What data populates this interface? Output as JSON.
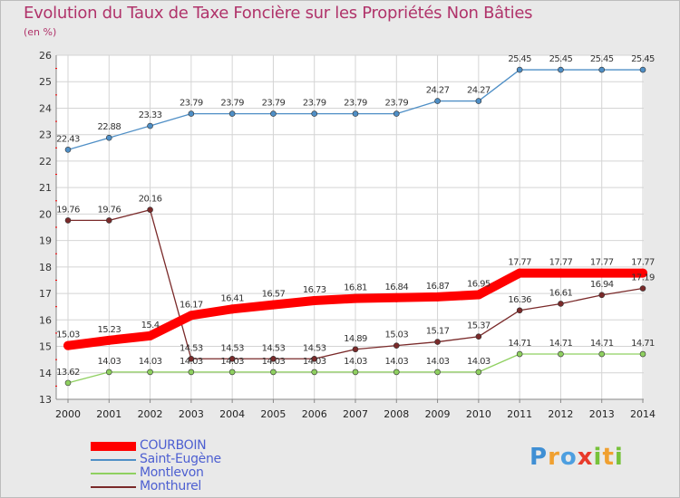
{
  "title": "Evolution du Taux de Taxe Foncière sur les Propriétés Non Bâties",
  "subtitle": "(en %)",
  "logo": {
    "letters": [
      "P",
      "r",
      "o",
      "x",
      "i",
      "t",
      "i"
    ],
    "colors": [
      "#3f8fd4",
      "#f0a030",
      "#4d9fe0",
      "#e83a2a",
      "#77c23a",
      "#f0a030",
      "#77c23a"
    ]
  },
  "chart_data": {
    "type": "line",
    "x": [
      2000,
      2001,
      2002,
      2003,
      2004,
      2005,
      2006,
      2007,
      2008,
      2009,
      2010,
      2011,
      2012,
      2013,
      2014
    ],
    "ylim": [
      13,
      26
    ],
    "yticks": [
      13,
      14,
      15,
      16,
      17,
      18,
      19,
      20,
      21,
      22,
      23,
      24,
      25,
      26
    ],
    "grid": true,
    "legend_position": "bottom-left",
    "series": [
      {
        "name": "COURBOIN",
        "color": "#ff0000",
        "values": [
          15.03,
          15.23,
          15.4,
          16.17,
          16.41,
          16.57,
          16.73,
          16.81,
          16.84,
          16.87,
          16.95,
          17.77,
          17.77,
          17.77,
          17.77
        ],
        "labels": [
          "15.03",
          "15.23",
          "15.4",
          "16.17",
          "16.41",
          "16.57",
          "16.73",
          "16.81",
          "16.84",
          "16.87",
          "16.95",
          "17.77",
          "17.77",
          "17.77",
          "17.77"
        ]
      },
      {
        "name": "Saint-Eugène",
        "color": "#4f8fc6",
        "values": [
          22.43,
          22.88,
          23.33,
          23.79,
          23.79,
          23.79,
          23.79,
          23.79,
          23.79,
          24.27,
          24.27,
          25.45,
          25.45,
          25.45,
          25.45
        ],
        "labels": [
          "22.43",
          "22.88",
          "23.33",
          "23.79",
          "23.79",
          "23.79",
          "23.79",
          "23.79",
          "23.79",
          "24.27",
          "24.27",
          "25.45",
          "25.45",
          "25.45",
          "25.45"
        ]
      },
      {
        "name": "Montlevon",
        "color": "#8fd060",
        "values": [
          13.62,
          14.03,
          14.03,
          14.03,
          14.03,
          14.03,
          14.03,
          14.03,
          14.03,
          14.03,
          14.03,
          14.71,
          14.71,
          14.71,
          14.71
        ],
        "labels": [
          "13.62",
          "14.03",
          "14.03",
          "14.03",
          "14.03",
          "14.03",
          "14.03",
          "14.03",
          "14.03",
          "14.03",
          "14.03",
          "14.71",
          "14.71",
          "14.71",
          "14.71"
        ]
      },
      {
        "name": "Monthurel",
        "color": "#7a2a2a",
        "values": [
          19.76,
          19.76,
          20.16,
          14.53,
          14.53,
          14.53,
          14.53,
          14.89,
          15.03,
          15.17,
          15.37,
          16.36,
          16.61,
          16.94,
          17.19
        ],
        "labels": [
          "19.76",
          "19.76",
          "20.16",
          "14.53",
          "14.53",
          "14.53",
          "14.53",
          "14.89",
          "15.03",
          "15.17",
          "15.37",
          "16.36",
          "16.61",
          "16.94",
          "17.19"
        ]
      }
    ]
  }
}
